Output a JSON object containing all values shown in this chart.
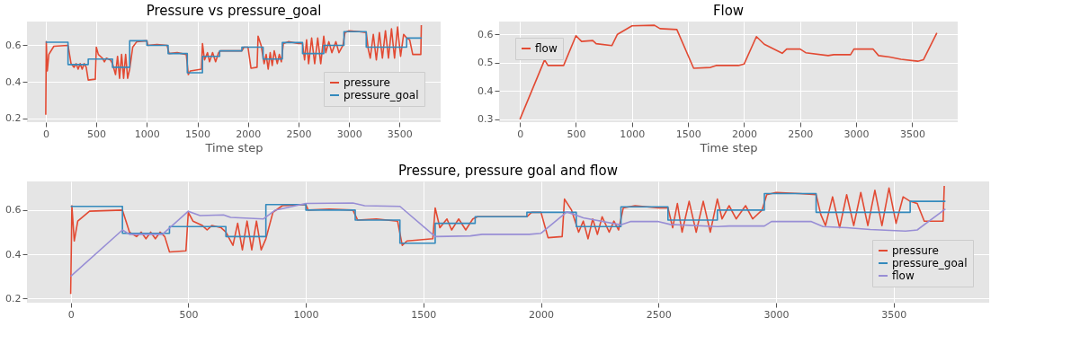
{
  "chart_data": [
    {
      "type": "line",
      "title": "Pressure vs pressure_goal",
      "xlabel": "Time step",
      "xlim": [
        -186,
        3906
      ],
      "xticks": [
        0,
        500,
        1000,
        1500,
        2000,
        2500,
        3000,
        3500
      ],
      "ylim": [
        0.18,
        0.73
      ],
      "yticks": [
        0.2,
        0.4,
        0.6
      ],
      "grid": true,
      "legend": "bottom right",
      "series": [
        {
          "name": "pressure",
          "color": "#e24a33",
          "x": [
            0,
            5,
            15,
            30,
            80,
            220,
            250,
            280,
            300,
            320,
            340,
            360,
            380,
            400,
            420,
            490,
            500,
            520,
            560,
            580,
            600,
            640,
            660,
            690,
            710,
            730,
            750,
            770,
            790,
            810,
            830,
            860,
            900,
            1000,
            1010,
            1100,
            1200,
            1220,
            1300,
            1390,
            1410,
            1430,
            1540,
            1550,
            1570,
            1600,
            1620,
            1650,
            1680,
            1710,
            1730,
            1800,
            1940,
            1960,
            2000,
            2030,
            2090,
            2100,
            2130,
            2160,
            2180,
            2200,
            2220,
            2240,
            2260,
            2290,
            2310,
            2330,
            2350,
            2400,
            2500,
            2540,
            2560,
            2580,
            2600,
            2630,
            2660,
            2690,
            2720,
            2750,
            2770,
            2800,
            2830,
            2870,
            2900,
            2940,
            2960,
            3000,
            3100,
            3170,
            3190,
            3210,
            3240,
            3270,
            3300,
            3330,
            3360,
            3390,
            3420,
            3450,
            3480,
            3510,
            3540,
            3570,
            3600,
            3630,
            3710,
            3715
          ],
          "values": [
            0.22,
            0.62,
            0.46,
            0.55,
            0.595,
            0.6,
            0.5,
            0.48,
            0.5,
            0.47,
            0.5,
            0.47,
            0.5,
            0.48,
            0.41,
            0.415,
            0.59,
            0.55,
            0.53,
            0.51,
            0.53,
            0.52,
            0.5,
            0.44,
            0.54,
            0.42,
            0.55,
            0.42,
            0.55,
            0.42,
            0.47,
            0.59,
            0.62,
            0.625,
            0.6,
            0.605,
            0.6,
            0.555,
            0.56,
            0.55,
            0.44,
            0.46,
            0.47,
            0.61,
            0.52,
            0.56,
            0.51,
            0.56,
            0.51,
            0.56,
            0.57,
            0.57,
            0.57,
            0.59,
            0.59,
            0.475,
            0.48,
            0.65,
            0.6,
            0.5,
            0.55,
            0.47,
            0.56,
            0.49,
            0.57,
            0.5,
            0.55,
            0.51,
            0.61,
            0.62,
            0.61,
            0.61,
            0.52,
            0.63,
            0.5,
            0.64,
            0.5,
            0.64,
            0.5,
            0.65,
            0.56,
            0.62,
            0.56,
            0.62,
            0.56,
            0.6,
            0.67,
            0.68,
            0.675,
            0.67,
            0.58,
            0.53,
            0.66,
            0.52,
            0.67,
            0.53,
            0.68,
            0.53,
            0.69,
            0.53,
            0.7,
            0.54,
            0.66,
            0.64,
            0.63,
            0.55,
            0.55,
            0.71
          ]
        },
        {
          "name": "pressure_goal",
          "color": "#348abd",
          "type": "step",
          "x": [
            0,
            220,
            420,
            660,
            830,
            1000,
            1210,
            1400,
            1550,
            1720,
            1940,
            2150,
            2340,
            2540,
            2750,
            2950,
            3170,
            3570,
            3720
          ],
          "values": [
            0.617,
            0.495,
            0.525,
            0.48,
            0.625,
            0.6,
            0.555,
            0.45,
            0.54,
            0.57,
            0.59,
            0.525,
            0.615,
            0.555,
            0.6,
            0.675,
            0.59,
            0.64,
            0.64
          ]
        }
      ]
    },
    {
      "type": "line",
      "title": "Flow",
      "xlabel": "Time step",
      "xlim": [
        -186,
        3906
      ],
      "xticks": [
        0,
        500,
        1000,
        1500,
        2000,
        2500,
        3000,
        3500
      ],
      "ylim": [
        0.29,
        0.645
      ],
      "yticks": [
        0.3,
        0.4,
        0.5,
        0.6
      ],
      "grid": true,
      "legend": "top left",
      "series": [
        {
          "name": "flow",
          "color": "#e24a33",
          "x": [
            0,
            220,
            250,
            390,
            500,
            550,
            650,
            680,
            820,
            870,
            1000,
            1200,
            1250,
            1400,
            1550,
            1700,
            1750,
            1950,
            2000,
            2110,
            2180,
            2340,
            2380,
            2500,
            2550,
            2750,
            2800,
            2950,
            2980,
            3150,
            3200,
            3300,
            3400,
            3550,
            3600,
            3720
          ],
          "values": [
            0.3,
            0.51,
            0.49,
            0.49,
            0.595,
            0.575,
            0.578,
            0.567,
            0.56,
            0.6,
            0.63,
            0.632,
            0.62,
            0.617,
            0.48,
            0.483,
            0.49,
            0.49,
            0.495,
            0.592,
            0.565,
            0.533,
            0.548,
            0.548,
            0.535,
            0.525,
            0.528,
            0.528,
            0.548,
            0.548,
            0.525,
            0.52,
            0.512,
            0.505,
            0.51,
            0.605
          ]
        }
      ]
    },
    {
      "type": "line",
      "title": "Pressure, pressure goal and flow",
      "xlim": [
        -186,
        3906
      ],
      "xticks": [
        0,
        500,
        1000,
        1500,
        2000,
        2500,
        3000,
        3500
      ],
      "ylim": [
        0.18,
        0.73
      ],
      "yticks": [
        0.2,
        0.4,
        0.6
      ],
      "grid": true,
      "legend": "bottom right",
      "series": [
        {
          "name": "pressure",
          "color": "#e24a33",
          "x": [
            0,
            5,
            15,
            30,
            80,
            220,
            250,
            280,
            300,
            320,
            340,
            360,
            380,
            400,
            420,
            490,
            500,
            520,
            560,
            580,
            600,
            640,
            660,
            690,
            710,
            730,
            750,
            770,
            790,
            810,
            830,
            860,
            900,
            1000,
            1010,
            1100,
            1200,
            1220,
            1300,
            1390,
            1410,
            1430,
            1540,
            1550,
            1570,
            1600,
            1620,
            1650,
            1680,
            1710,
            1730,
            1800,
            1940,
            1960,
            2000,
            2030,
            2090,
            2100,
            2130,
            2160,
            2180,
            2200,
            2220,
            2240,
            2260,
            2290,
            2310,
            2330,
            2350,
            2400,
            2500,
            2540,
            2560,
            2580,
            2600,
            2630,
            2660,
            2690,
            2720,
            2750,
            2770,
            2800,
            2830,
            2870,
            2900,
            2940,
            2960,
            3000,
            3100,
            3170,
            3190,
            3210,
            3240,
            3270,
            3300,
            3330,
            3360,
            3390,
            3420,
            3450,
            3480,
            3510,
            3540,
            3570,
            3600,
            3630,
            3710,
            3715
          ],
          "values": [
            0.22,
            0.62,
            0.46,
            0.55,
            0.595,
            0.6,
            0.5,
            0.48,
            0.5,
            0.47,
            0.5,
            0.47,
            0.5,
            0.48,
            0.41,
            0.415,
            0.59,
            0.55,
            0.53,
            0.51,
            0.53,
            0.52,
            0.5,
            0.44,
            0.54,
            0.42,
            0.55,
            0.42,
            0.55,
            0.42,
            0.47,
            0.59,
            0.62,
            0.625,
            0.6,
            0.605,
            0.6,
            0.555,
            0.56,
            0.55,
            0.44,
            0.46,
            0.47,
            0.61,
            0.52,
            0.56,
            0.51,
            0.56,
            0.51,
            0.56,
            0.57,
            0.57,
            0.57,
            0.59,
            0.59,
            0.475,
            0.48,
            0.65,
            0.6,
            0.5,
            0.55,
            0.47,
            0.56,
            0.49,
            0.57,
            0.5,
            0.55,
            0.51,
            0.61,
            0.62,
            0.61,
            0.61,
            0.52,
            0.63,
            0.5,
            0.64,
            0.5,
            0.64,
            0.5,
            0.65,
            0.56,
            0.62,
            0.56,
            0.62,
            0.56,
            0.6,
            0.67,
            0.68,
            0.675,
            0.67,
            0.58,
            0.53,
            0.66,
            0.52,
            0.67,
            0.53,
            0.68,
            0.53,
            0.69,
            0.53,
            0.7,
            0.54,
            0.66,
            0.64,
            0.63,
            0.55,
            0.55,
            0.71
          ]
        },
        {
          "name": "pressure_goal",
          "color": "#348abd",
          "type": "step",
          "x": [
            0,
            220,
            420,
            660,
            830,
            1000,
            1210,
            1400,
            1550,
            1720,
            1940,
            2150,
            2340,
            2540,
            2750,
            2950,
            3170,
            3570,
            3720
          ],
          "values": [
            0.617,
            0.495,
            0.525,
            0.48,
            0.625,
            0.6,
            0.555,
            0.45,
            0.54,
            0.57,
            0.59,
            0.525,
            0.615,
            0.555,
            0.6,
            0.675,
            0.59,
            0.64,
            0.64
          ]
        },
        {
          "name": "flow",
          "color": "#988ed5",
          "x": [
            0,
            220,
            250,
            390,
            500,
            550,
            650,
            680,
            820,
            870,
            1000,
            1200,
            1250,
            1400,
            1550,
            1700,
            1750,
            1950,
            2000,
            2110,
            2180,
            2340,
            2380,
            2500,
            2550,
            2750,
            2800,
            2950,
            2980,
            3150,
            3200,
            3300,
            3400,
            3550,
            3600,
            3720
          ],
          "values": [
            0.3,
            0.51,
            0.49,
            0.49,
            0.595,
            0.575,
            0.578,
            0.567,
            0.56,
            0.6,
            0.63,
            0.632,
            0.62,
            0.617,
            0.48,
            0.483,
            0.49,
            0.49,
            0.495,
            0.592,
            0.565,
            0.533,
            0.548,
            0.548,
            0.535,
            0.525,
            0.528,
            0.528,
            0.548,
            0.548,
            0.525,
            0.52,
            0.512,
            0.505,
            0.51,
            0.605
          ]
        }
      ]
    }
  ]
}
